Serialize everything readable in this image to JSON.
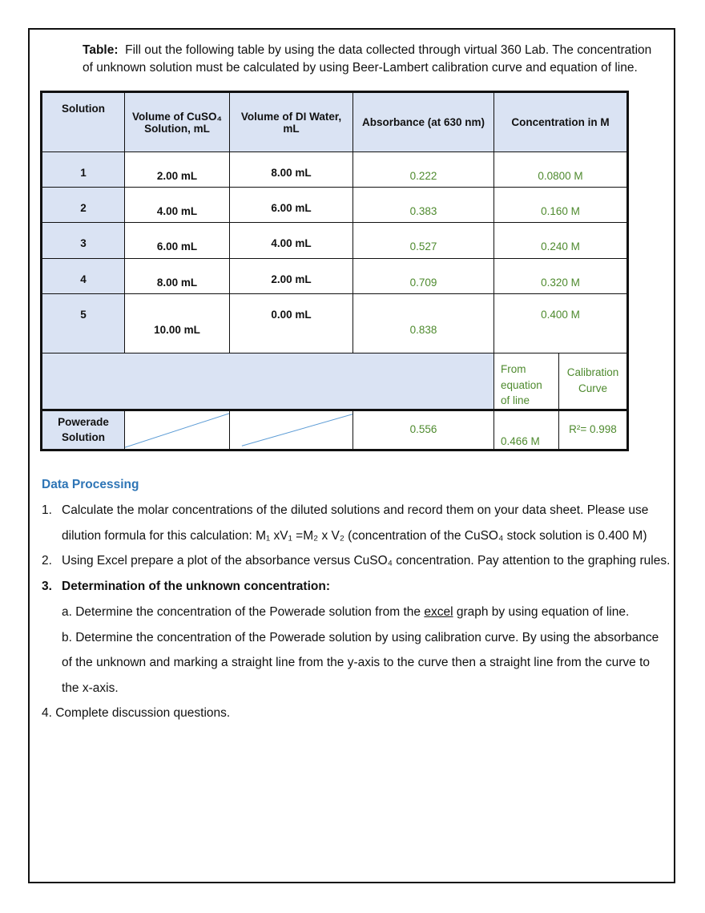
{
  "intro": {
    "label": "Table:",
    "line1": "Fill out the following table by using the data collected through virtual 360 Lab. The concentration",
    "line2": "of unknown solution must be calculated by using Beer-Lambert calibration curve and equation of line."
  },
  "table": {
    "headers": {
      "solution": "Solution",
      "vol_cuso4_a": "Volume of CuSO₄",
      "vol_cuso4_b": "Solution, mL",
      "vol_water_a": "Volume of DI Water,",
      "vol_water_b": "mL",
      "absorbance": "Absorbance (at 630 nm)",
      "concentration": "Concentration in M"
    },
    "rows": [
      {
        "solution": "1",
        "cuso4": "2.00 mL",
        "water": "8.00 mL",
        "absorbance": "0.222",
        "concentration": "0.0800 M"
      },
      {
        "solution": "2",
        "cuso4": "4.00 mL",
        "water": "6.00 mL",
        "absorbance": "0.383",
        "concentration": "0.160 M"
      },
      {
        "solution": "3",
        "cuso4": "6.00 mL",
        "water": "4.00 mL",
        "absorbance": "0.527",
        "concentration": "0.240 M"
      },
      {
        "solution": "4",
        "cuso4": "8.00 mL",
        "water": "2.00 mL",
        "absorbance": "0.709",
        "concentration": "0.320 M"
      },
      {
        "solution": "5",
        "cuso4": "10.00 mL",
        "water": "0.00 mL",
        "absorbance": "0.838",
        "concentration": "0.400 M"
      }
    ],
    "from_equation": [
      "From",
      "equation",
      "of line"
    ],
    "calibration_curve": [
      "Calibration",
      "Curve"
    ],
    "powerade": {
      "label_a": "Powerade",
      "label_b": "Solution",
      "absorbance": "0.556",
      "conc_equation": "0.466 M",
      "r_squared": "R²= 0.998"
    }
  },
  "processing": {
    "title": "Data Processing",
    "item1_num": "1.",
    "item1_line1": "Calculate the molar concentrations of the diluted solutions and record them on your data sheet. Please use",
    "item1_line2": "dilution formula for this calculation: M₁ xV₁ =M₂ x V₂ (concentration of the CuSO₄ stock solution is 0.400 M)",
    "item2_num": "2.",
    "item2_line": "Using Excel prepare a plot of the absorbance versus CuSO₄ concentration. Pay attention to the graphing rules.",
    "item3_num": "3.",
    "item3_line": "Determination of the unknown concentration:",
    "item3a_pre": "a. Determine the concentration of the Powerade solution from the ",
    "item3a_u": "excel",
    "item3a_post": " graph by using equation of line.",
    "item3b_line1": "b. Determine the concentration of the Powerade solution by using calibration curve. By using the absorbance",
    "item3b_line2": "of the unknown and marking a straight line from the y-axis to the curve then a straight line from the curve to",
    "item3b_line3": "the x-axis.",
    "item4_line": "4. Complete discussion questions."
  }
}
